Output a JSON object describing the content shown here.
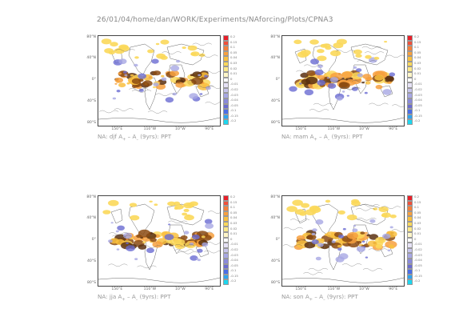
{
  "page": {
    "header": "26/01/04/home/dan/WORK/Experiments/NAforcing/Plots/CPNA3"
  },
  "axes": {
    "lat_labels": [
      "80°N",
      "40°N",
      "0°",
      "40°S",
      "80°S"
    ],
    "lon_labels": [
      "150°E",
      "110°W",
      "10°W",
      "90°E"
    ]
  },
  "colorbar": {
    "labels": [
      "0.2",
      "0.15",
      "0.1",
      "0.05",
      "0.04",
      "0.03",
      "0.02",
      "0.01",
      "0",
      "-0.01",
      "-0.02",
      "-0.03",
      "-0.04",
      "-0.05",
      "-0.1",
      "-0.15",
      "-0.2"
    ],
    "colors": [
      "#e8202a",
      "#f0503a",
      "#f4803c",
      "#f7a03e",
      "#f9c040",
      "#fbd85a",
      "#fde98a",
      "#fff6c8",
      "#ffffff",
      "#e6e2f6",
      "#c9c6ee",
      "#a8a8e4",
      "#8a8ada",
      "#6a6cd2",
      "#4b6ee6",
      "#2ea4f0",
      "#1ed6ee"
    ]
  },
  "panels": [
    {
      "prefix": "NA: djf A",
      "sub1": "+",
      "dash": " – A",
      "sub2": "–",
      "suffix": " (9yrs): PPT"
    },
    {
      "prefix": "NA: mam A",
      "sub1": "+",
      "dash": " – A",
      "sub2": "–",
      "suffix": " (9yrs): PPT"
    },
    {
      "prefix": "NA: jja A",
      "sub1": "+",
      "dash": " – A",
      "sub2": "–",
      "suffix": " (9yrs): PPT"
    },
    {
      "prefix": "NA: son A",
      "sub1": "+",
      "dash": " – A",
      "sub2": "–",
      "suffix": " (9yrs): PPT"
    }
  ]
}
